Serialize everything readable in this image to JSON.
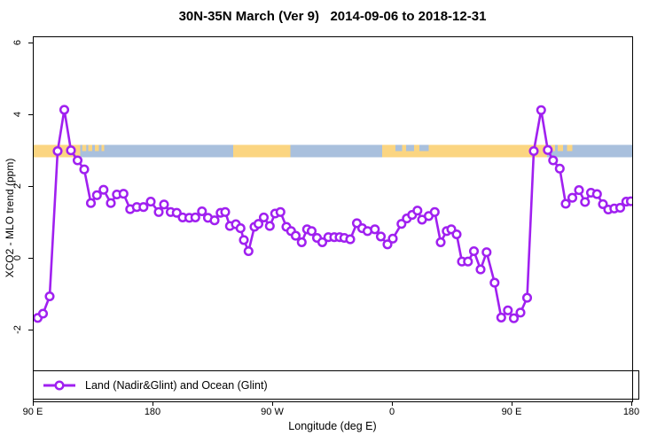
{
  "title": "30N-35N March (Ver 9)   2014-09-06 to 2018-12-31",
  "chart_data": {
    "type": "line",
    "title": "30N-35N March (Ver 9)   2014-09-06 to 2018-12-31",
    "xlabel": "Longitude (deg E)",
    "ylabel": "XCO2 - MLO trend (ppm)",
    "xlim": [
      90,
      540
    ],
    "ylim": [
      -4,
      6.2
    ],
    "grid": false,
    "x_ticks": [
      {
        "pos": 90,
        "label": "90 E"
      },
      {
        "pos": 180,
        "label": "180"
      },
      {
        "pos": 270,
        "label": "90 W"
      },
      {
        "pos": 360,
        "label": "0"
      },
      {
        "pos": 450,
        "label": "90 E"
      },
      {
        "pos": 540,
        "label": "180"
      }
    ],
    "y_ticks": [
      {
        "pos": -2,
        "label": "-2"
      },
      {
        "pos": 0,
        "label": "0"
      },
      {
        "pos": 2,
        "label": "2"
      },
      {
        "pos": 4,
        "label": "4"
      },
      {
        "pos": 6,
        "label": "6"
      }
    ],
    "legend": {
      "position": "bottom-left",
      "entries": [
        {
          "label": "Land (Nadir&Glint) and Ocean (Glint)",
          "color": "#A020F0",
          "marker": "open-circle"
        }
      ]
    },
    "series": [
      {
        "name": "Land (Nadir&Glint) and Ocean (Glint)",
        "color": "#A020F0",
        "marker": "open-circle",
        "points": [
          [
            93,
            -1.65
          ],
          [
            97,
            -1.53
          ],
          [
            102,
            -1.05
          ],
          [
            108,
            3.0
          ],
          [
            113,
            4.15
          ],
          [
            118,
            3.02
          ],
          [
            123,
            2.74
          ],
          [
            128,
            2.49
          ],
          [
            133,
            1.55
          ],
          [
            137.5,
            1.77
          ],
          [
            142.5,
            1.92
          ],
          [
            148,
            1.55
          ],
          [
            152.5,
            1.79
          ],
          [
            157.5,
            1.81
          ],
          [
            162.5,
            1.38
          ],
          [
            167.5,
            1.44
          ],
          [
            172.5,
            1.44
          ],
          [
            178,
            1.59
          ],
          [
            184,
            1.3
          ],
          [
            188,
            1.51
          ],
          [
            193,
            1.3
          ],
          [
            197.5,
            1.28
          ],
          [
            202,
            1.15
          ],
          [
            207,
            1.14
          ],
          [
            211.5,
            1.15
          ],
          [
            216.5,
            1.32
          ],
          [
            221,
            1.14
          ],
          [
            226,
            1.07
          ],
          [
            230.5,
            1.28
          ],
          [
            234,
            1.3
          ],
          [
            237.5,
            0.91
          ],
          [
            242,
            0.96
          ],
          [
            245.5,
            0.85
          ],
          [
            248,
            0.52
          ],
          [
            251.5,
            0.21
          ],
          [
            256,
            0.89
          ],
          [
            259,
            0.97
          ],
          [
            263,
            1.15
          ],
          [
            267.5,
            0.91
          ],
          [
            271.5,
            1.26
          ],
          [
            275.5,
            1.3
          ],
          [
            280,
            0.89
          ],
          [
            283.5,
            0.77
          ],
          [
            287,
            0.64
          ],
          [
            291.5,
            0.46
          ],
          [
            295.5,
            0.82
          ],
          [
            299,
            0.77
          ],
          [
            303,
            0.58
          ],
          [
            307,
            0.46
          ],
          [
            311.5,
            0.6
          ],
          [
            316,
            0.6
          ],
          [
            320,
            0.6
          ],
          [
            323.5,
            0.58
          ],
          [
            328,
            0.54
          ],
          [
            333,
            0.99
          ],
          [
            337,
            0.85
          ],
          [
            341,
            0.77
          ],
          [
            346.5,
            0.82
          ],
          [
            351,
            0.62
          ],
          [
            356,
            0.4
          ],
          [
            360,
            0.56
          ],
          [
            366.5,
            0.97
          ],
          [
            370.5,
            1.12
          ],
          [
            374.5,
            1.22
          ],
          [
            378.5,
            1.34
          ],
          [
            382,
            1.09
          ],
          [
            387,
            1.19
          ],
          [
            391.5,
            1.3
          ],
          [
            396,
            0.46
          ],
          [
            400.5,
            0.77
          ],
          [
            404,
            0.82
          ],
          [
            408,
            0.68
          ],
          [
            412,
            -0.08
          ],
          [
            416.5,
            -0.08
          ],
          [
            421,
            0.21
          ],
          [
            426,
            -0.3
          ],
          [
            430.5,
            0.18
          ],
          [
            436.5,
            -0.67
          ],
          [
            441.5,
            -1.64
          ],
          [
            446.5,
            -1.44
          ],
          [
            451,
            -1.66
          ],
          [
            456,
            -1.5
          ],
          [
            461,
            -1.09
          ],
          [
            466,
            3.0
          ],
          [
            471.5,
            4.14
          ],
          [
            476.5,
            3.03
          ],
          [
            480.5,
            2.74
          ],
          [
            485.5,
            2.51
          ],
          [
            490,
            1.53
          ],
          [
            495,
            1.7
          ],
          [
            500,
            1.91
          ],
          [
            504.5,
            1.58
          ],
          [
            509,
            1.84
          ],
          [
            513.5,
            1.8
          ],
          [
            518,
            1.52
          ],
          [
            522,
            1.37
          ],
          [
            526.5,
            1.4
          ],
          [
            531,
            1.42
          ],
          [
            535.5,
            1.59
          ],
          [
            539,
            1.6
          ]
        ]
      }
    ],
    "surface_band": {
      "description": "land/ocean strip along longitude at y = 3 ppm",
      "center_value": 3.0,
      "ocean_color": "#A9C0DD",
      "land_color": "#FBD581",
      "land_segments": [
        [
          90,
          125
        ],
        [
          240,
          283
        ],
        [
          352,
          476
        ]
      ],
      "island_dashes": [
        [
          126.5,
          129.5
        ],
        [
          131,
          134
        ],
        [
          136,
          139
        ],
        [
          141,
          143
        ],
        [
          479,
          482
        ],
        [
          484,
          488
        ],
        [
          491,
          495
        ]
      ],
      "sea_dashes": [
        [
          362,
          367
        ],
        [
          370,
          376
        ],
        [
          380,
          387
        ]
      ]
    }
  },
  "colors": {
    "line": "#A020F0",
    "axis": "#000000",
    "background": "#ffffff"
  }
}
